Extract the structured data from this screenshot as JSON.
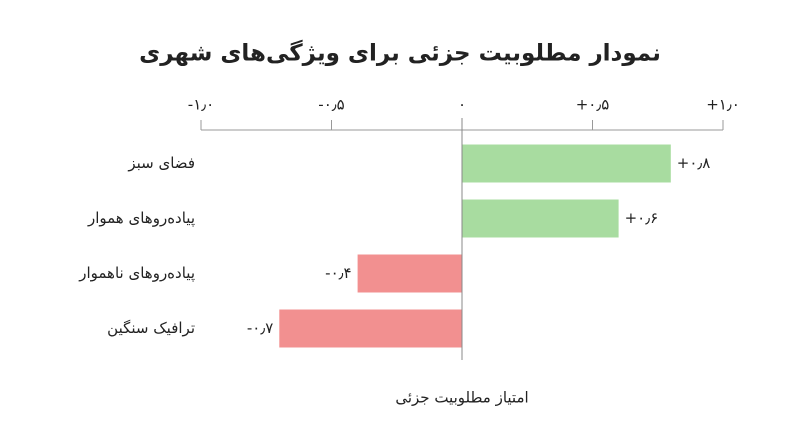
{
  "chart_data": {
    "type": "hbar",
    "title": "نمودار مطلوبیت جزئی برای ویژگی‌های شهری",
    "x_label": "امتیاز مطلوبیت جزئی",
    "categories": [
      "فضای سبز",
      "پیاده‌روهای هموار",
      "پیاده‌روهای ناهموار",
      "ترافیک سنگین"
    ],
    "values": [
      0.8,
      0.6,
      -0.4,
      -0.7
    ],
    "value_labels": [
      "+۰٫۸",
      "+۰٫۶",
      "-۰٫۴",
      "-۰٫۷"
    ],
    "colors": [
      "#a8dca0",
      "#a8dca0",
      "#f29090",
      "#f29090"
    ],
    "xlim": [
      -1.0,
      1.0
    ],
    "xticks": [
      {
        "value": -1.0,
        "label": "-۱٫۰"
      },
      {
        "value": -0.5,
        "label": "-۰٫۵"
      },
      {
        "value": 0,
        "label": "۰"
      },
      {
        "value": 0.5,
        "label": "+۰٫۵"
      },
      {
        "value": 1.0,
        "label": "+۱٫۰"
      }
    ]
  }
}
